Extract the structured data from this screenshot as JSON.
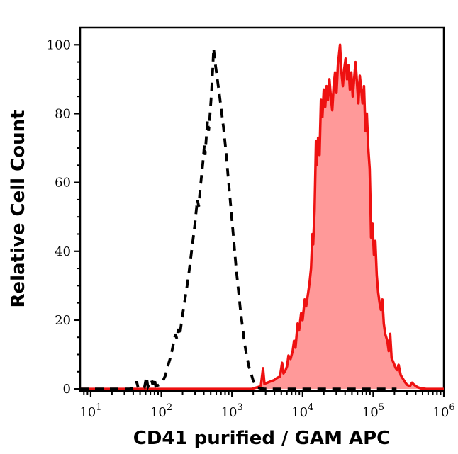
{
  "figure": {
    "background": "#ffffff",
    "frame_color": "#000000"
  },
  "chart_data": {
    "type": "line",
    "subtype": "flow-cytometry-histogram-overlay",
    "title": "",
    "xlabel": "CD41 purified / GAM APC",
    "ylabel": "Relative Cell Count",
    "x_scale": "log10",
    "xlim_log": [
      0.85,
      6.0
    ],
    "ylim": [
      -0.6,
      105
    ],
    "grid": false,
    "legend": null,
    "x_ticks": {
      "base": 10,
      "exponents": [
        1,
        2,
        3,
        4,
        5,
        6
      ],
      "minor_mantissas": [
        2,
        3,
        4,
        5,
        6,
        7,
        8,
        9
      ]
    },
    "y_ticks": {
      "major": [
        0,
        20,
        40,
        60,
        80,
        100
      ],
      "minor_step": 5
    },
    "series": [
      {
        "name": "negative control (black dashed)",
        "line_style": "dashed",
        "color": "#000000",
        "fill": null,
        "peak_x": 550,
        "peak_y": 99,
        "points_log10x_y": [
          [
            0.85,
            0
          ],
          [
            1.55,
            0
          ],
          [
            1.6,
            0.2
          ],
          [
            1.63,
            0.3
          ],
          [
            1.65,
            2.2
          ],
          [
            1.67,
            0.4
          ],
          [
            1.72,
            0.2
          ],
          [
            1.76,
            0.3
          ],
          [
            1.79,
            3.5
          ],
          [
            1.81,
            0.6
          ],
          [
            1.86,
            2.6
          ],
          [
            1.88,
            1.2
          ],
          [
            1.9,
            3.2
          ],
          [
            1.92,
            0.8
          ],
          [
            1.97,
            1.2
          ],
          [
            2.02,
            2.2
          ],
          [
            2.06,
            4
          ],
          [
            2.09,
            6.5
          ],
          [
            2.12,
            8.5
          ],
          [
            2.15,
            11
          ],
          [
            2.18,
            14
          ],
          [
            2.2,
            16
          ],
          [
            2.22,
            14.5
          ],
          [
            2.24,
            17.5
          ],
          [
            2.26,
            15.5
          ],
          [
            2.29,
            20
          ],
          [
            2.32,
            24
          ],
          [
            2.35,
            28
          ],
          [
            2.38,
            32
          ],
          [
            2.41,
            37
          ],
          [
            2.44,
            42
          ],
          [
            2.47,
            47
          ],
          [
            2.49,
            51
          ],
          [
            2.51,
            55
          ],
          [
            2.53,
            53
          ],
          [
            2.55,
            58
          ],
          [
            2.57,
            62
          ],
          [
            2.59,
            66
          ],
          [
            2.61,
            71
          ],
          [
            2.62,
            68
          ],
          [
            2.64,
            74
          ],
          [
            2.655,
            78
          ],
          [
            2.67,
            75
          ],
          [
            2.68,
            77
          ],
          [
            2.7,
            83
          ],
          [
            2.71,
            86
          ],
          [
            2.72,
            90
          ],
          [
            2.73,
            94
          ],
          [
            2.74,
            99
          ],
          [
            2.76,
            95
          ],
          [
            2.78,
            92
          ],
          [
            2.8,
            89
          ],
          [
            2.82,
            86
          ],
          [
            2.85,
            81
          ],
          [
            2.88,
            76
          ],
          [
            2.91,
            70
          ],
          [
            2.94,
            63
          ],
          [
            2.97,
            56
          ],
          [
            3.0,
            49
          ],
          [
            3.03,
            42
          ],
          [
            3.06,
            35
          ],
          [
            3.09,
            29
          ],
          [
            3.12,
            23
          ],
          [
            3.15,
            18
          ],
          [
            3.18,
            13
          ],
          [
            3.21,
            9.5
          ],
          [
            3.24,
            6.5
          ],
          [
            3.27,
            4.5
          ],
          [
            3.3,
            2.5
          ],
          [
            3.33,
            1.2
          ],
          [
            3.36,
            0.5
          ],
          [
            3.4,
            0.2
          ],
          [
            3.45,
            0
          ],
          [
            5.33,
            0
          ]
        ]
      },
      {
        "name": "CD41 stained sample (red filled)",
        "line_style": "solid",
        "color": "#ee1111",
        "fill": "#ff9999",
        "peak_x": 34000,
        "peak_y": 100,
        "points_log10x_y": [
          [
            0.85,
            0
          ],
          [
            3.28,
            0
          ],
          [
            3.33,
            0.3
          ],
          [
            3.38,
            0.6
          ],
          [
            3.41,
            1
          ],
          [
            3.44,
            6
          ],
          [
            3.46,
            1.5
          ],
          [
            3.5,
            1.8
          ],
          [
            3.55,
            2.2
          ],
          [
            3.6,
            2.6
          ],
          [
            3.64,
            3.2
          ],
          [
            3.68,
            3.6
          ],
          [
            3.71,
            7.6
          ],
          [
            3.73,
            4.5
          ],
          [
            3.76,
            5.5
          ],
          [
            3.78,
            6.6
          ],
          [
            3.8,
            9.7
          ],
          [
            3.83,
            8.7
          ],
          [
            3.86,
            11
          ],
          [
            3.88,
            14
          ],
          [
            3.9,
            12
          ],
          [
            3.93,
            19
          ],
          [
            3.95,
            17
          ],
          [
            3.98,
            22
          ],
          [
            4.0,
            20
          ],
          [
            4.03,
            26
          ],
          [
            4.05,
            24
          ],
          [
            4.08,
            28
          ],
          [
            4.1,
            31
          ],
          [
            4.12,
            35
          ],
          [
            4.14,
            45
          ],
          [
            4.15,
            42
          ],
          [
            4.17,
            52
          ],
          [
            4.19,
            72
          ],
          [
            4.2,
            65
          ],
          [
            4.22,
            73
          ],
          [
            4.24,
            68
          ],
          [
            4.26,
            84
          ],
          [
            4.28,
            79
          ],
          [
            4.3,
            87
          ],
          [
            4.32,
            82
          ],
          [
            4.34,
            88
          ],
          [
            4.36,
            84
          ],
          [
            4.38,
            90
          ],
          [
            4.4,
            85
          ],
          [
            4.42,
            81
          ],
          [
            4.44,
            88
          ],
          [
            4.46,
            92
          ],
          [
            4.48,
            86
          ],
          [
            4.5,
            94
          ],
          [
            4.53,
            100
          ],
          [
            4.55,
            92
          ],
          [
            4.57,
            88
          ],
          [
            4.59,
            93
          ],
          [
            4.61,
            96
          ],
          [
            4.63,
            90
          ],
          [
            4.65,
            94
          ],
          [
            4.67,
            87
          ],
          [
            4.69,
            92
          ],
          [
            4.71,
            85
          ],
          [
            4.73,
            90
          ],
          [
            4.75,
            95
          ],
          [
            4.77,
            89
          ],
          [
            4.79,
            83
          ],
          [
            4.81,
            91
          ],
          [
            4.83,
            87
          ],
          [
            4.85,
            83
          ],
          [
            4.87,
            88
          ],
          [
            4.89,
            75
          ],
          [
            4.91,
            80
          ],
          [
            4.93,
            70
          ],
          [
            4.95,
            64
          ],
          [
            4.96,
            55
          ],
          [
            4.97,
            44
          ],
          [
            4.99,
            48
          ],
          [
            5.01,
            39
          ],
          [
            5.03,
            43
          ],
          [
            5.05,
            33
          ],
          [
            5.07,
            28
          ],
          [
            5.09,
            25
          ],
          [
            5.11,
            23
          ],
          [
            5.13,
            26
          ],
          [
            5.15,
            19
          ],
          [
            5.17,
            16
          ],
          [
            5.2,
            14
          ],
          [
            5.22,
            11
          ],
          [
            5.24,
            16
          ],
          [
            5.26,
            9
          ],
          [
            5.29,
            7.5
          ],
          [
            5.32,
            6
          ],
          [
            5.34,
            5.5
          ],
          [
            5.36,
            7
          ],
          [
            5.39,
            4
          ],
          [
            5.42,
            3
          ],
          [
            5.45,
            2
          ],
          [
            5.48,
            1.2
          ],
          [
            5.52,
            0.8
          ],
          [
            5.55,
            1.8
          ],
          [
            5.58,
            1.2
          ],
          [
            5.62,
            0.6
          ],
          [
            5.67,
            0.2
          ],
          [
            5.75,
            0
          ],
          [
            6.0,
            0
          ]
        ]
      }
    ]
  }
}
